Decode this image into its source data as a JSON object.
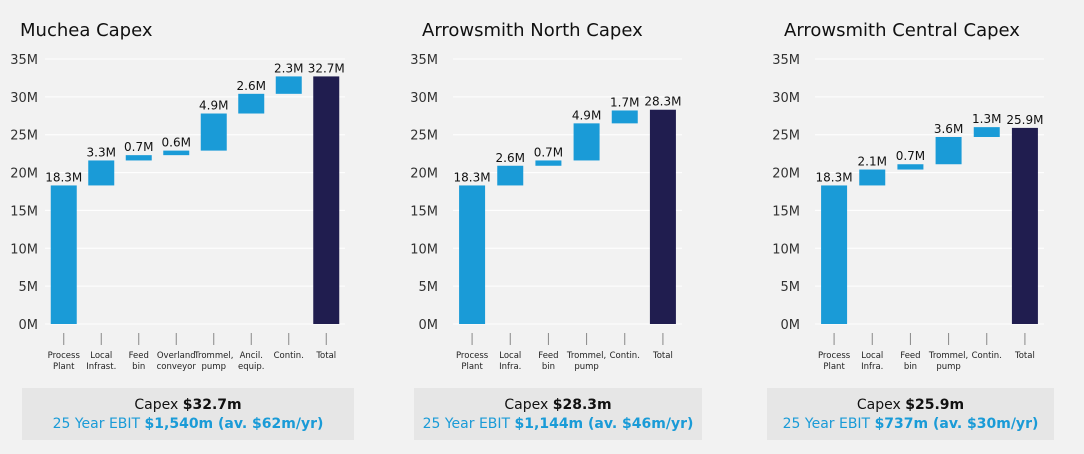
{
  "colors": {
    "increase": "#1a9bd7",
    "total": "#201d4f",
    "grid": "#ffffff",
    "axis_text": "#333333"
  },
  "chart_data": [
    {
      "type": "waterfall",
      "title": "Muchea Capex",
      "ylim": [
        0,
        35
      ],
      "yticks": [
        "0M",
        "5M",
        "10M",
        "15M",
        "20M",
        "25M",
        "30M",
        "35M"
      ],
      "grid": true,
      "categories": [
        [
          "Process",
          "Plant"
        ],
        [
          "Local",
          "Infrast."
        ],
        [
          "Feed",
          "bin"
        ],
        [
          "Overland",
          "conveyor"
        ],
        [
          "Trommel,",
          "pump"
        ],
        [
          "Ancil.",
          "equip."
        ],
        [
          "Contin."
        ],
        [
          "Total"
        ]
      ],
      "values": [
        18.3,
        3.3,
        0.7,
        0.6,
        4.9,
        2.6,
        2.3,
        32.7
      ],
      "data_labels": [
        "18.3M",
        "3.3M",
        "0.7M",
        "0.6M",
        "4.9M",
        "2.6M",
        "2.3M",
        "32.7M"
      ],
      "is_total": [
        false,
        false,
        false,
        false,
        false,
        false,
        false,
        true
      ],
      "summary": {
        "capex_label": "Capex ",
        "capex_value": "$32.7m",
        "ebit_label": "25 Year EBIT ",
        "ebit_value": "$1,540m (av. $62m/yr)"
      }
    },
    {
      "type": "waterfall",
      "title": "Arrowsmith North Capex",
      "ylim": [
        0,
        35
      ],
      "yticks": [
        "0M",
        "5M",
        "10M",
        "15M",
        "20M",
        "25M",
        "30M",
        "35M"
      ],
      "grid": true,
      "categories": [
        [
          "Process",
          "Plant"
        ],
        [
          "Local",
          "Infra."
        ],
        [
          "Feed",
          "bin"
        ],
        [
          "Trommel,",
          "pump"
        ],
        [
          "Contin."
        ],
        [
          "Total"
        ]
      ],
      "values": [
        18.3,
        2.6,
        0.7,
        4.9,
        1.7,
        28.3
      ],
      "data_labels": [
        "18.3M",
        "2.6M",
        "0.7M",
        "4.9M",
        "1.7M",
        "28.3M"
      ],
      "is_total": [
        false,
        false,
        false,
        false,
        false,
        true
      ],
      "summary": {
        "capex_label": "Capex ",
        "capex_value": "$28.3m",
        "ebit_label": "25 Year EBIT ",
        "ebit_value": "$1,144m (av. $46m/yr)"
      }
    },
    {
      "type": "waterfall",
      "title": "Arrowsmith Central Capex",
      "ylim": [
        0,
        35
      ],
      "yticks": [
        "0M",
        "5M",
        "10M",
        "15M",
        "20M",
        "25M",
        "30M",
        "35M"
      ],
      "grid": true,
      "categories": [
        [
          "Process",
          "Plant"
        ],
        [
          "Local",
          "Infra."
        ],
        [
          "Feed",
          "bin"
        ],
        [
          "Trommel,",
          "pump"
        ],
        [
          "Contin."
        ],
        [
          "Total"
        ]
      ],
      "values": [
        18.3,
        2.1,
        0.7,
        3.6,
        1.3,
        25.9
      ],
      "data_labels": [
        "18.3M",
        "2.1M",
        "0.7M",
        "3.6M",
        "1.3M",
        "25.9M"
      ],
      "is_total": [
        false,
        false,
        false,
        false,
        false,
        true
      ],
      "summary": {
        "capex_label": "Capex ",
        "capex_value": "$25.9m",
        "ebit_label": "25 Year EBIT ",
        "ebit_value": "$737m (av. $30m/yr)"
      }
    }
  ]
}
